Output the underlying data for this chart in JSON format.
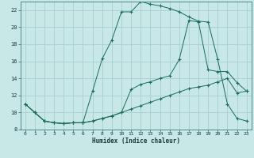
{
  "xlabel": "Humidex (Indice chaleur)",
  "background_color": "#c8e8e8",
  "grid_color": "#aacece",
  "line_color": "#1a6b5a",
  "xlim_min": -0.5,
  "xlim_max": 23.5,
  "ylim_min": 8,
  "ylim_max": 23,
  "xticks": [
    0,
    1,
    2,
    3,
    4,
    5,
    6,
    7,
    8,
    9,
    10,
    11,
    12,
    13,
    14,
    15,
    16,
    17,
    18,
    19,
    20,
    21,
    22,
    23
  ],
  "yticks": [
    8,
    10,
    12,
    14,
    16,
    18,
    20,
    22
  ],
  "curve_top_x": [
    0,
    1,
    2,
    3,
    4,
    5,
    6,
    7,
    8,
    9,
    10,
    11,
    12,
    13,
    14,
    15,
    16,
    17,
    18,
    19,
    20,
    21,
    22,
    23
  ],
  "curve_top_y": [
    11,
    10,
    9,
    8.8,
    8.7,
    8.8,
    8.8,
    12.5,
    16.3,
    18.5,
    21.8,
    21.8,
    23.0,
    22.7,
    22.5,
    22.2,
    21.8,
    21.2,
    20.7,
    20.6,
    16.2,
    11.0,
    9.3,
    9.0
  ],
  "curve_mid_x": [
    0,
    1,
    2,
    3,
    4,
    5,
    6,
    7,
    8,
    9,
    10,
    11,
    12,
    13,
    14,
    15,
    16,
    17,
    18,
    19,
    20,
    21,
    22,
    23
  ],
  "curve_mid_y": [
    11,
    10,
    9,
    8.8,
    8.7,
    8.8,
    8.8,
    9.0,
    9.3,
    9.6,
    10.0,
    12.7,
    13.3,
    13.6,
    14.0,
    14.3,
    16.2,
    20.8,
    20.6,
    15.0,
    14.8,
    14.8,
    13.5,
    12.5
  ],
  "curve_bot_x": [
    0,
    1,
    2,
    3,
    4,
    5,
    6,
    7,
    8,
    9,
    10,
    11,
    12,
    13,
    14,
    15,
    16,
    17,
    18,
    19,
    20,
    21,
    22,
    23
  ],
  "curve_bot_y": [
    11,
    10,
    9,
    8.8,
    8.7,
    8.8,
    8.8,
    9.0,
    9.3,
    9.6,
    10.0,
    10.4,
    10.8,
    11.2,
    11.6,
    12.0,
    12.4,
    12.8,
    13.0,
    13.2,
    13.6,
    14.0,
    12.3,
    12.5
  ]
}
